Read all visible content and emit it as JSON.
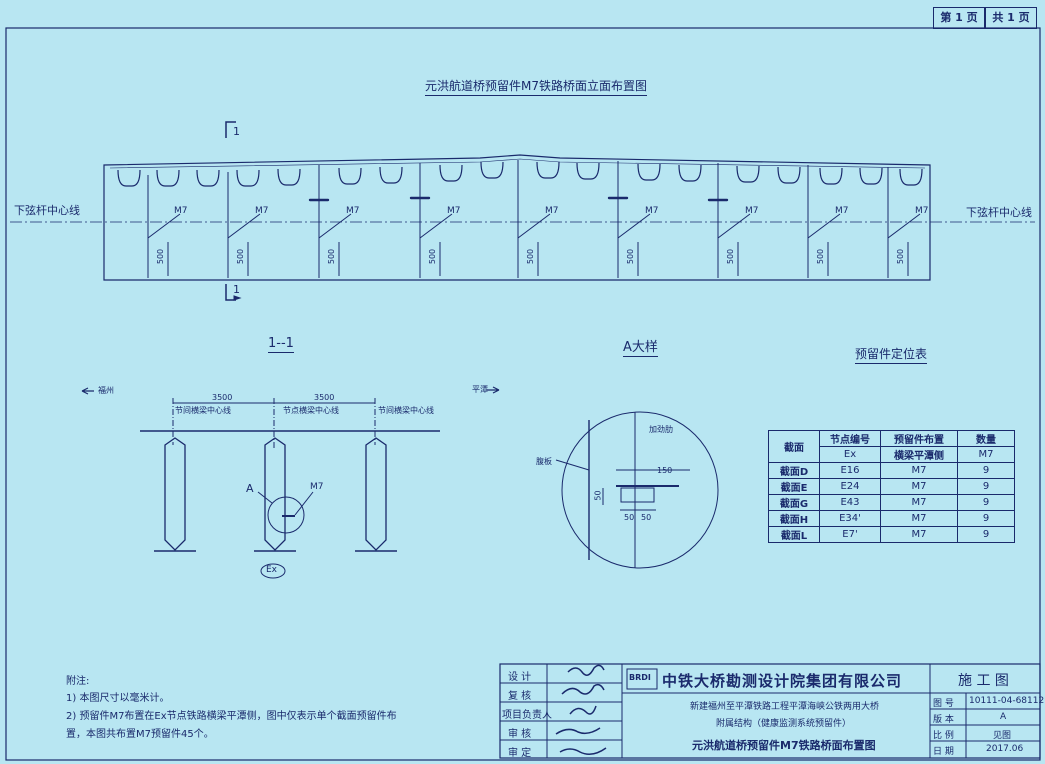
{
  "page": {
    "label_page": "第 1 页",
    "label_total": "共 1 页"
  },
  "elevation": {
    "title": "元洪航道桥预留件M7铁路桥面立面布置图",
    "centerline_left": "下弦杆中心线",
    "centerline_right": "下弦杆中心线",
    "part_label": "M7",
    "dim_500": "500",
    "section_mark": "1"
  },
  "section": {
    "title": "1--1",
    "left_dir": "福州",
    "right_dir": "平潭",
    "dim1": "3500",
    "dim2": "3500",
    "beam_left": "节间横梁中心线",
    "beam_mid": "节点横梁中心线",
    "beam_right": "节间横梁中心线",
    "mark_a": "A",
    "mark_m7": "M7",
    "node": "Ex"
  },
  "detail": {
    "title": "A大样",
    "stiffener": "加劲肋",
    "web": "腹板",
    "d150": "150",
    "d50v": "50",
    "d50a": "50",
    "d50b": "50"
  },
  "table": {
    "title": "预留件定位表",
    "headers": [
      "截面",
      "节点编号",
      "预留件布置",
      "数量"
    ],
    "subheaders": [
      "Ex",
      "横梁平潭侧",
      "M7"
    ],
    "rows": [
      [
        "截面D",
        "E16",
        "M7",
        "9"
      ],
      [
        "截面E",
        "E24",
        "M7",
        "9"
      ],
      [
        "截面G",
        "E43",
        "M7",
        "9"
      ],
      [
        "截面H",
        "E34'",
        "M7",
        "9"
      ],
      [
        "截面L",
        "E7'",
        "M7",
        "9"
      ]
    ]
  },
  "notes": {
    "title": "附注:",
    "n1": "1) 本图尺寸以毫米计。",
    "n2": "2) 预留件M7布置在Ex节点铁路横梁平潭侧，图中仅表示单个截面预留件布",
    "n3": "置，本图共布置M7预留件45个。"
  },
  "titleblock": {
    "roles": [
      "设  计",
      "复  核",
      "项目负责人",
      "审  核",
      "审  定"
    ],
    "logo": "BRDI",
    "company": "中铁大桥勘测设计院集团有限公司",
    "project": "新建福州至平潭铁路工程平潭海峡公铁两用大桥",
    "subproject": "附属结构（健康监测系统预留件）",
    "drawing": "元洪航道桥预留件M7铁路桥面布置图",
    "stage": "施 工 图",
    "fields": [
      {
        "k": "图  号",
        "v": "10111-04-68112"
      },
      {
        "k": "版  本",
        "v": "A"
      },
      {
        "k": "比  例",
        "v": "见图"
      },
      {
        "k": "日  期",
        "v": "2017.06"
      }
    ]
  }
}
